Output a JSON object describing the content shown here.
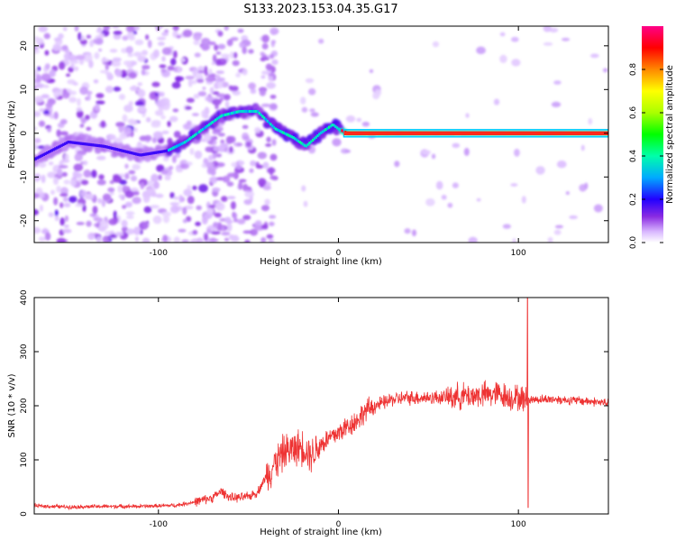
{
  "chart_data": [
    {
      "type": "heatmap",
      "title": "S133.2023.153.04.35.G17",
      "xlabel": "Height of straight line (km)",
      "ylabel": "Frequency (Hz)",
      "xlim": [
        -169,
        150
      ],
      "ylim": [
        -25,
        24.5
      ],
      "xticks": [
        -100,
        0,
        100
      ],
      "yticks": [
        -20,
        -10,
        0,
        10,
        20
      ],
      "colorbar": {
        "label": "Normalized spectral amplitude",
        "range": [
          0,
          1
        ],
        "ticks": [
          0.0,
          0.2,
          0.4,
          0.6,
          0.8
        ]
      },
      "ridge": [
        {
          "x": -169,
          "y": -6
        },
        {
          "x": -150,
          "y": -2
        },
        {
          "x": -130,
          "y": -3
        },
        {
          "x": -110,
          "y": -5
        },
        {
          "x": -95,
          "y": -4
        },
        {
          "x": -85,
          "y": -2
        },
        {
          "x": -75,
          "y": 1
        },
        {
          "x": -65,
          "y": 4
        },
        {
          "x": -55,
          "y": 5
        },
        {
          "x": -45,
          "y": 5
        },
        {
          "x": -35,
          "y": 1
        },
        {
          "x": -25,
          "y": -1
        },
        {
          "x": -18,
          "y": -3
        },
        {
          "x": -10,
          "y": 0
        },
        {
          "x": -3,
          "y": 2
        },
        {
          "x": 0,
          "y": 1
        },
        {
          "x": 5,
          "y": 0
        },
        {
          "x": 150,
          "y": 0
        }
      ]
    },
    {
      "type": "line",
      "title": "",
      "xlabel": "Height of straight line (km)",
      "ylabel": "SNR (10 * v/v)",
      "xlim": [
        -169,
        150
      ],
      "ylim": [
        0,
        400
      ],
      "xticks": [
        -100,
        0,
        100
      ],
      "yticks": [
        0,
        100,
        200,
        300,
        400
      ],
      "color": "#ee3333",
      "series": [
        {
          "x": [
            -169,
            -150,
            -130,
            -110,
            -90,
            -80,
            -70,
            -65,
            -60,
            -55,
            -50,
            -45,
            -40,
            -35,
            -30,
            -25,
            -20,
            -15,
            -10,
            -5,
            0,
            5,
            10,
            15,
            20,
            25,
            30,
            40,
            50,
            60,
            70,
            80,
            90,
            95,
            100,
            105,
            110,
            120,
            130,
            140,
            150
          ],
          "y": [
            15,
            13,
            14,
            14,
            16,
            22,
            30,
            42,
            30,
            30,
            32,
            40,
            70,
            95,
            115,
            120,
            125,
            110,
            128,
            140,
            150,
            162,
            172,
            190,
            200,
            205,
            212,
            215,
            215,
            216,
            218,
            220,
            222,
            215,
            215,
            210,
            212,
            212,
            210,
            208,
            205
          ]
        }
      ],
      "annotations": [
        {
          "x": 105,
          "y": 400,
          "note": "peak"
        },
        {
          "x": 105.3,
          "y": 12,
          "note": "dip"
        }
      ]
    }
  ],
  "colors": {
    "line": "#ee3333",
    "heat_background": "#ffffff"
  }
}
